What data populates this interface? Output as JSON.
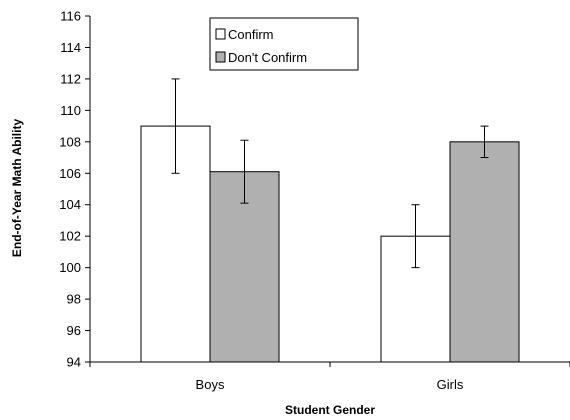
{
  "chart_data": {
    "type": "bar",
    "title": "",
    "xlabel": "Student Gender",
    "ylabel": "End-of-Year Math Ability",
    "categories": [
      "Boys",
      "Girls"
    ],
    "ylim": [
      94,
      116
    ],
    "yticks": [
      94,
      96,
      98,
      100,
      102,
      104,
      106,
      108,
      110,
      112,
      114,
      116
    ],
    "grid": false,
    "legend_position": "top-center",
    "series": [
      {
        "name": "Confirm",
        "color": "#ffffff",
        "values": [
          109,
          102
        ],
        "err_low": [
          106,
          100
        ],
        "err_high": [
          112,
          104
        ]
      },
      {
        "name": "Don't Confirm",
        "color": "#b0b0b0",
        "values": [
          106.1,
          108
        ],
        "err_low": [
          104.1,
          107
        ],
        "err_high": [
          108.1,
          109
        ]
      }
    ]
  }
}
